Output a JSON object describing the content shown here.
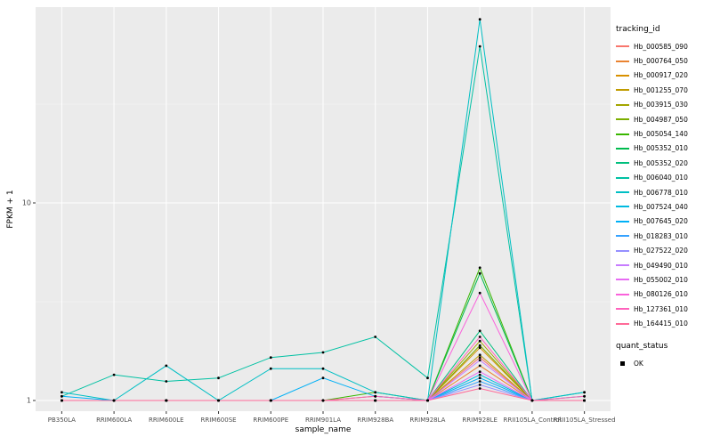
{
  "figure": {
    "background": "#FFFFFF",
    "panel_background": "#EBEBEB",
    "gridline_major_color": "#FFFFFF",
    "gridline_minor_color": "#F5F5F5",
    "tick_color": "#333333",
    "tick_label_color": "#4D4D4D"
  },
  "legend": {
    "tracking_title": "tracking_id",
    "quant_title": "quant_status",
    "quant_items": [
      {
        "label": "OK",
        "symbol": "point",
        "color": "#000000"
      }
    ]
  },
  "chart_data": {
    "type": "line",
    "title": "",
    "xlabel": "sample_name",
    "ylabel": "FPKM + 1",
    "y_scale": "log10",
    "y_ticks": [
      1,
      10
    ],
    "y_minor": [
      3.162,
      31.62
    ],
    "ylim": [
      0.94,
      98
    ],
    "legend_position": "right",
    "grid": true,
    "point_color": "#000000",
    "categories": [
      "PB350LA",
      "RRIM600LA",
      "RRIM600LE",
      "RRIM600SE",
      "RRIM600PE",
      "RRIM901LA",
      "RRIM928BA",
      "RRIM928LA",
      "RRIM928LE",
      "RRII105LA_Control",
      "RRII105LA_Stressed"
    ],
    "series": [
      {
        "name": "Hb_000585_090",
        "color": "#F8766D",
        "values": [
          1,
          1,
          1,
          1,
          1,
          1,
          1,
          1,
          1.65,
          1,
          1
        ]
      },
      {
        "name": "Hb_000764_050",
        "color": "#EA8331",
        "values": [
          1,
          1,
          1,
          1,
          1,
          1,
          1,
          1,
          1.5,
          1,
          1
        ]
      },
      {
        "name": "Hb_000917_020",
        "color": "#D89000",
        "values": [
          1,
          1,
          1,
          1,
          1,
          1,
          1,
          1,
          1.85,
          1,
          1
        ]
      },
      {
        "name": "Hb_001255_070",
        "color": "#C09B00",
        "values": [
          1,
          1,
          1,
          1,
          1,
          1,
          1,
          1,
          1.7,
          1,
          1
        ]
      },
      {
        "name": "Hb_003915_030",
        "color": "#A3A500",
        "values": [
          1,
          1,
          1,
          1,
          1,
          1,
          1.05,
          1,
          2.0,
          1,
          1
        ]
      },
      {
        "name": "Hb_004987_050",
        "color": "#7CAE00",
        "values": [
          1,
          1,
          1,
          1,
          1,
          1,
          1,
          1,
          1.9,
          1,
          1
        ]
      },
      {
        "name": "Hb_005054_140",
        "color": "#39B600",
        "values": [
          1,
          1,
          1,
          1,
          1,
          1,
          1.1,
          1,
          4.7,
          1,
          1
        ]
      },
      {
        "name": "Hb_005352_010",
        "color": "#00BB4E",
        "values": [
          1,
          1,
          1,
          1,
          1,
          1,
          1,
          1,
          4.4,
          1,
          1
        ]
      },
      {
        "name": "Hb_005352_020",
        "color": "#00BF7D",
        "values": [
          1,
          1,
          1,
          1,
          1,
          1,
          1,
          1,
          2.25,
          1,
          1.05
        ]
      },
      {
        "name": "Hb_006040_010",
        "color": "#00C1A3",
        "values": [
          1.05,
          1.35,
          1.25,
          1.3,
          1.65,
          1.75,
          2.1,
          1.3,
          62,
          1,
          1.1
        ]
      },
      {
        "name": "Hb_006778_010",
        "color": "#00BFC4",
        "values": [
          1.1,
          1,
          1.5,
          1,
          1.45,
          1.45,
          1.1,
          1,
          85,
          1,
          1.1
        ]
      },
      {
        "name": "Hb_007524_040",
        "color": "#00BAE0",
        "values": [
          1,
          1,
          1,
          1,
          1,
          1,
          1,
          1,
          1.35,
          1,
          1
        ]
      },
      {
        "name": "Hb_007645_020",
        "color": "#00B0F6",
        "values": [
          1.05,
          1,
          1,
          1,
          1,
          1.3,
          1.05,
          1,
          1.3,
          1,
          1
        ]
      },
      {
        "name": "Hb_018283_010",
        "color": "#35A2FF",
        "values": [
          1,
          1,
          1,
          1,
          1,
          1,
          1,
          1,
          1.25,
          1,
          1
        ]
      },
      {
        "name": "Hb_027522_020",
        "color": "#9590FF",
        "values": [
          1,
          1,
          1,
          1,
          1,
          1,
          1,
          1,
          1.2,
          1,
          1
        ]
      },
      {
        "name": "Hb_049490_010",
        "color": "#C77CFF",
        "values": [
          1,
          1,
          1,
          1,
          1,
          1,
          1,
          1,
          1.6,
          1,
          1
        ]
      },
      {
        "name": "Hb_055002_010",
        "color": "#E76BF3",
        "values": [
          1,
          1,
          1,
          1,
          1,
          1,
          1,
          1,
          1.4,
          1,
          1
        ]
      },
      {
        "name": "Hb_080126_010",
        "color": "#FA62DB",
        "values": [
          1,
          1,
          1,
          1,
          1,
          1,
          1,
          1,
          3.5,
          1,
          1
        ]
      },
      {
        "name": "Hb_127361_010",
        "color": "#FF62BC",
        "values": [
          1,
          1,
          1,
          1,
          1,
          1,
          1.05,
          1,
          2.1,
          1,
          1.05
        ]
      },
      {
        "name": "Hb_164415_010",
        "color": "#FF6A98",
        "values": [
          1,
          1,
          1,
          1,
          1,
          1,
          1,
          1,
          1.15,
          1,
          1
        ]
      }
    ]
  }
}
